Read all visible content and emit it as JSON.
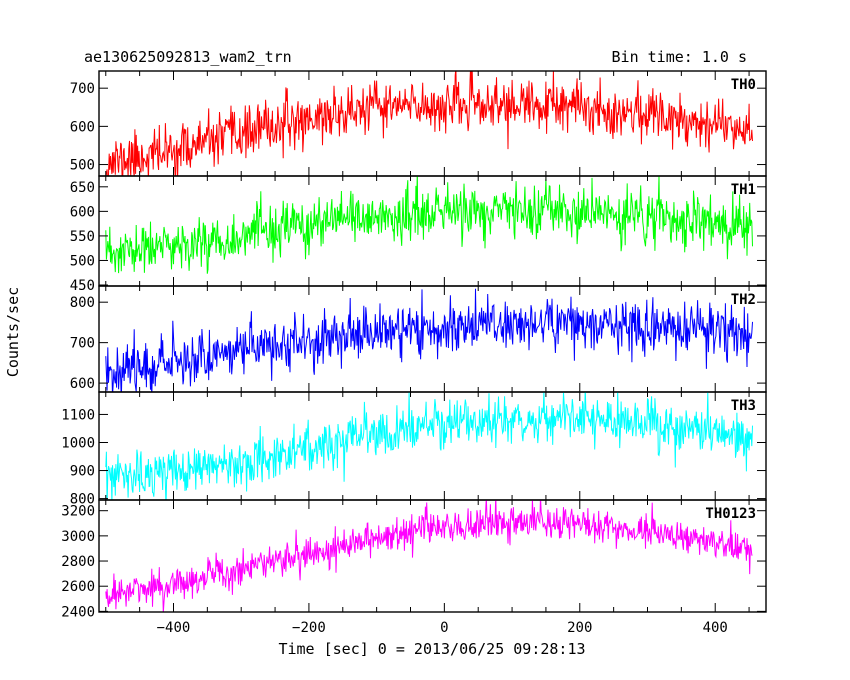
{
  "header": {
    "title": "ae130625092813_wam2_trn",
    "bin_time": "Bin time: 1.0 s"
  },
  "chart_data": {
    "type": "line",
    "title": "ae130625092813_wam2_trn",
    "subtitle": "Bin time: 1.0 s",
    "xlabel": "Time [sec] 0 = 2013/06/25 09:28:13",
    "ylabel": "Counts/sec",
    "xlim": [
      -510,
      475
    ],
    "x_range_data": [
      -500,
      455
    ],
    "x_ticks": [
      -400,
      -200,
      0,
      200,
      400
    ],
    "x_tick_labels": [
      "−400",
      "−200",
      "0",
      "200",
      "400"
    ],
    "grid": false,
    "panels": [
      {
        "name": "TH0",
        "color": "#ff0000",
        "ylim": [
          470,
          745
        ],
        "y_ticks": [
          500,
          600,
          700
        ],
        "y_tick_labels": [
          "500",
          "600",
          "700"
        ],
        "trend_x": [
          -500,
          -400,
          -300,
          -200,
          -100,
          0,
          100,
          200,
          300,
          455
        ],
        "trend_y": [
          505,
          535,
          580,
          620,
          650,
          655,
          655,
          648,
          635,
          595
        ],
        "noise": 33,
        "seed": 11
      },
      {
        "name": "TH1",
        "color": "#00ff00",
        "ylim": [
          448,
          672
        ],
        "y_ticks": [
          450,
          500,
          550,
          600,
          650
        ],
        "y_tick_labels": [
          "450",
          "500",
          "550",
          "600",
          "650"
        ],
        "trend_x": [
          -500,
          -400,
          -300,
          -200,
          -100,
          0,
          100,
          200,
          300,
          455
        ],
        "trend_y": [
          510,
          530,
          550,
          570,
          588,
          598,
          600,
          595,
          588,
          568
        ],
        "noise": 26,
        "seed": 23
      },
      {
        "name": "TH2",
        "color": "#0000ff",
        "ylim": [
          578,
          840
        ],
        "y_ticks": [
          600,
          700,
          800
        ],
        "y_tick_labels": [
          "600",
          "700",
          "800"
        ],
        "trend_x": [
          -500,
          -400,
          -300,
          -200,
          -100,
          0,
          100,
          200,
          300,
          455
        ],
        "trend_y": [
          630,
          655,
          685,
          705,
          725,
          738,
          748,
          748,
          740,
          720
        ],
        "noise": 32,
        "seed": 37
      },
      {
        "name": "TH3",
        "color": "#00ffff",
        "ylim": [
          795,
          1180
        ],
        "y_ticks": [
          800,
          900,
          1000,
          1100
        ],
        "y_tick_labels": [
          "800",
          "900",
          "1000",
          "1100"
        ],
        "trend_x": [
          -500,
          -400,
          -300,
          -200,
          -100,
          0,
          100,
          200,
          300,
          455
        ],
        "trend_y": [
          870,
          890,
          935,
          980,
          1025,
          1065,
          1085,
          1080,
          1065,
          1025
        ],
        "noise": 42,
        "seed": 53
      },
      {
        "name": "TH0123",
        "color": "#ff00ff",
        "ylim": [
          2395,
          3285
        ],
        "y_ticks": [
          2400,
          2600,
          2800,
          3000,
          3200
        ],
        "y_tick_labels": [
          "2400",
          "2600",
          "2800",
          "3000",
          "3200"
        ],
        "trend_x": [
          -500,
          -400,
          -300,
          -200,
          -100,
          0,
          100,
          200,
          300,
          455
        ],
        "trend_y": [
          2530,
          2610,
          2740,
          2870,
          2990,
          3070,
          3110,
          3100,
          3040,
          2910
        ],
        "noise": 70,
        "seed": 71
      }
    ]
  }
}
